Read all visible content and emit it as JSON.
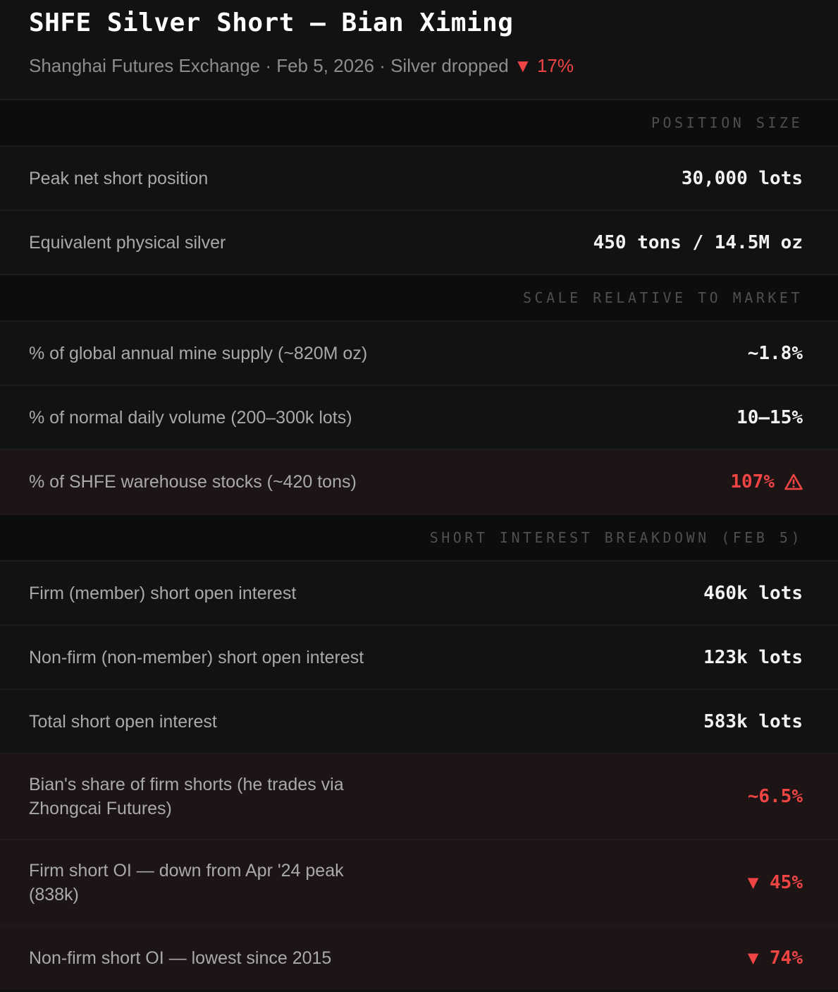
{
  "header": {
    "title": "SHFE Silver Short — Bian Ximing",
    "subtitle_prefix": "Shanghai Futures Exchange · Feb 5, 2026 · Silver dropped ",
    "drop_value": "▼ 17%"
  },
  "sections": {
    "position_size": {
      "title": "POSITION SIZE",
      "rows": [
        {
          "label": "Peak net short position",
          "value": "30,000 lots"
        },
        {
          "label": "Equivalent physical silver",
          "value": "450 tons / 14.5M oz"
        }
      ]
    },
    "scale": {
      "title": "SCALE RELATIVE TO MARKET",
      "rows": [
        {
          "label": "% of global annual mine supply (~820M oz)",
          "value": "~1.8%"
        },
        {
          "label": "% of normal daily volume (200–300k lots)",
          "value": "10–15%"
        },
        {
          "label": "% of SHFE warehouse stocks (~420 tons)",
          "value": "107%",
          "icon": "warning-icon"
        }
      ]
    },
    "short_interest": {
      "title": "SHORT INTEREST BREAKDOWN (FEB 5)",
      "rows": [
        {
          "label": "Firm (member) short open interest",
          "value": "460k lots"
        },
        {
          "label": "Non-firm (non-member) short open interest",
          "value": "123k lots"
        },
        {
          "label": "Total short open interest",
          "value": "583k lots"
        },
        {
          "label": "Bian's share of firm shorts (he trades via Zhongcai Futures)",
          "value": "~6.5%"
        },
        {
          "label": "Firm short OI — down from Apr '24 peak (838k)",
          "value": "▼ 45%"
        },
        {
          "label": "Non-firm short OI — lowest since 2015",
          "value": "▼ 74%"
        }
      ]
    }
  },
  "colors": {
    "background": "#121212",
    "alert_background": "#1d1515",
    "negative": "#ef4444",
    "section_header_text": "#4f4f4f"
  }
}
